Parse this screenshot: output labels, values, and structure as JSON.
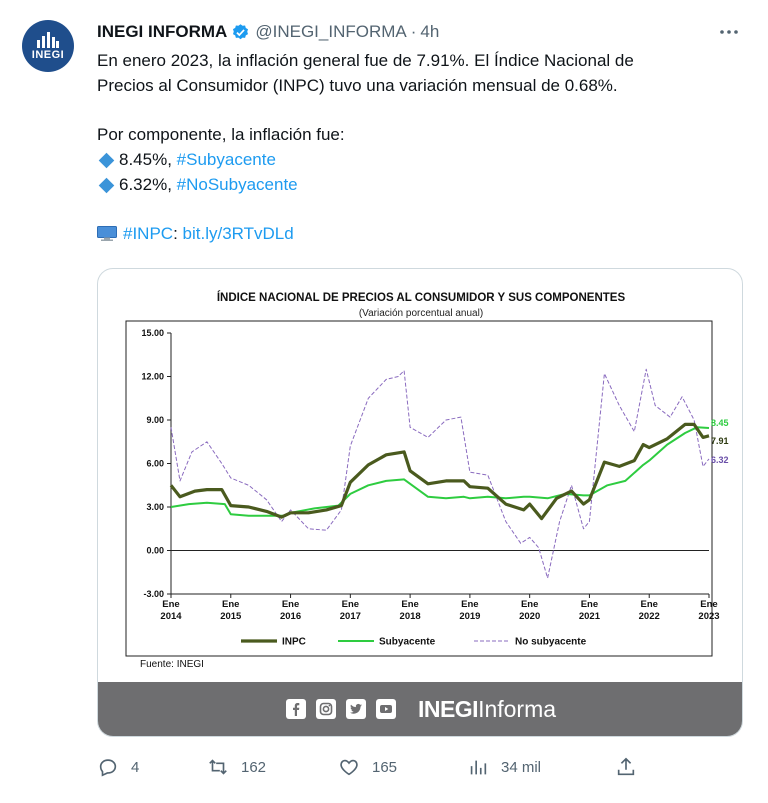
{
  "tweet": {
    "display_name": "INEGI INFORMA",
    "handle": "@INEGI_INFORMA",
    "separator": "·",
    "time": "4h",
    "avatar_label": "INEGI",
    "line1": "En enero 2023, la inflación general fue de 7.91%. El Índice Nacional de",
    "line2": "Precios al Consumidor (INPC) tuvo una variación mensual de 0.68%.",
    "line3": "Por componente, la inflación fue:",
    "item1_value": "8.45%, ",
    "item1_tag": "#Subyacente",
    "item2_value": "6.32%, ",
    "item2_tag": "#NoSubyacente",
    "link_tag": "#INPC",
    "link_sep": ": ",
    "link_url": "bit.ly/3RTvDLd"
  },
  "card": {
    "brand_bold": "INEGI",
    "brand_light": "Informa"
  },
  "actions": {
    "replies": "4",
    "retweets": "162",
    "likes": "165",
    "views": "34 mil"
  },
  "colors": {
    "accent": "#1d9bf0",
    "inpc": "#4a5a1e",
    "subyacente": "#2ecc40",
    "no_subyacente": "#8a6bbf",
    "footer": "#6e6e70"
  },
  "chart_data": {
    "type": "line",
    "title": "Índice Nacional de Precios al Consumidor y sus componentes",
    "subtitle": "(Variación porcentual anual)",
    "source": "Fuente: INEGI",
    "ylim": [
      -3,
      15
    ],
    "yticks": [
      "15.00",
      "12.00",
      "9.00",
      "6.00",
      "3.00",
      "0.00",
      "-3.00"
    ],
    "ytick_values": [
      15,
      12,
      9,
      6,
      3,
      0,
      -3
    ],
    "xticks": [
      {
        "top": "Ene",
        "bottom": "2014"
      },
      {
        "top": "Ene",
        "bottom": "2015"
      },
      {
        "top": "Ene",
        "bottom": "2016"
      },
      {
        "top": "Ene",
        "bottom": "2017"
      },
      {
        "top": "Ene",
        "bottom": "2018"
      },
      {
        "top": "Ene",
        "bottom": "2019"
      },
      {
        "top": "Ene",
        "bottom": "2020"
      },
      {
        "top": "Ene",
        "bottom": "2021"
      },
      {
        "top": "Ene",
        "bottom": "2022"
      },
      {
        "top": "Ene",
        "bottom": "2023"
      }
    ],
    "x_start_year": 2014,
    "x_end_year": 2023,
    "legend_position": "bottom",
    "series": [
      {
        "name": "INPC",
        "end_label": "7.91",
        "points": [
          [
            2014.0,
            4.5
          ],
          [
            2014.15,
            3.7
          ],
          [
            2014.4,
            4.1
          ],
          [
            2014.6,
            4.2
          ],
          [
            2014.85,
            4.2
          ],
          [
            2015.0,
            3.1
          ],
          [
            2015.3,
            3.0
          ],
          [
            2015.6,
            2.7
          ],
          [
            2015.85,
            2.3
          ],
          [
            2016.0,
            2.6
          ],
          [
            2016.3,
            2.6
          ],
          [
            2016.6,
            2.8
          ],
          [
            2016.85,
            3.1
          ],
          [
            2017.0,
            4.7
          ],
          [
            2017.3,
            5.9
          ],
          [
            2017.6,
            6.6
          ],
          [
            2017.9,
            6.8
          ],
          [
            2018.0,
            5.5
          ],
          [
            2018.3,
            4.6
          ],
          [
            2018.6,
            4.8
          ],
          [
            2018.9,
            4.8
          ],
          [
            2019.0,
            4.4
          ],
          [
            2019.3,
            4.3
          ],
          [
            2019.6,
            3.2
          ],
          [
            2019.9,
            2.8
          ],
          [
            2020.0,
            3.2
          ],
          [
            2020.2,
            2.2
          ],
          [
            2020.45,
            3.6
          ],
          [
            2020.7,
            4.1
          ],
          [
            2020.9,
            3.2
          ],
          [
            2021.0,
            3.5
          ],
          [
            2021.25,
            6.1
          ],
          [
            2021.5,
            5.8
          ],
          [
            2021.75,
            6.2
          ],
          [
            2021.9,
            7.3
          ],
          [
            2022.0,
            7.1
          ],
          [
            2022.3,
            7.7
          ],
          [
            2022.6,
            8.7
          ],
          [
            2022.75,
            8.7
          ],
          [
            2022.9,
            7.8
          ],
          [
            2023.0,
            7.91
          ]
        ]
      },
      {
        "name": "Subyacente",
        "end_label": "8.45",
        "points": [
          [
            2014.0,
            3.0
          ],
          [
            2014.3,
            3.2
          ],
          [
            2014.6,
            3.3
          ],
          [
            2014.9,
            3.2
          ],
          [
            2015.0,
            2.5
          ],
          [
            2015.3,
            2.4
          ],
          [
            2015.6,
            2.4
          ],
          [
            2015.9,
            2.4
          ],
          [
            2016.0,
            2.6
          ],
          [
            2016.4,
            2.9
          ],
          [
            2016.8,
            3.1
          ],
          [
            2017.0,
            3.9
          ],
          [
            2017.3,
            4.5
          ],
          [
            2017.6,
            4.8
          ],
          [
            2017.9,
            4.9
          ],
          [
            2018.0,
            4.6
          ],
          [
            2018.3,
            3.7
          ],
          [
            2018.6,
            3.6
          ],
          [
            2018.9,
            3.7
          ],
          [
            2019.0,
            3.6
          ],
          [
            2019.3,
            3.7
          ],
          [
            2019.6,
            3.6
          ],
          [
            2019.9,
            3.7
          ],
          [
            2020.0,
            3.7
          ],
          [
            2020.3,
            3.6
          ],
          [
            2020.6,
            3.9
          ],
          [
            2020.9,
            3.8
          ],
          [
            2021.0,
            3.8
          ],
          [
            2021.3,
            4.5
          ],
          [
            2021.6,
            4.8
          ],
          [
            2021.9,
            5.9
          ],
          [
            2022.0,
            6.2
          ],
          [
            2022.3,
            7.3
          ],
          [
            2022.6,
            8.1
          ],
          [
            2022.8,
            8.5
          ],
          [
            2023.0,
            8.45
          ]
        ]
      },
      {
        "name": "No subyacente",
        "end_label": "6.32",
        "points": [
          [
            2014.0,
            8.5
          ],
          [
            2014.15,
            4.8
          ],
          [
            2014.35,
            6.8
          ],
          [
            2014.6,
            7.5
          ],
          [
            2014.85,
            6.0
          ],
          [
            2015.0,
            5.0
          ],
          [
            2015.3,
            4.5
          ],
          [
            2015.6,
            3.5
          ],
          [
            2015.85,
            2.0
          ],
          [
            2016.0,
            2.8
          ],
          [
            2016.3,
            1.5
          ],
          [
            2016.6,
            1.4
          ],
          [
            2016.85,
            2.8
          ],
          [
            2017.0,
            7.2
          ],
          [
            2017.3,
            10.5
          ],
          [
            2017.6,
            11.8
          ],
          [
            2017.8,
            12.0
          ],
          [
            2017.9,
            12.4
          ],
          [
            2018.0,
            8.5
          ],
          [
            2018.3,
            7.8
          ],
          [
            2018.6,
            9.0
          ],
          [
            2018.85,
            9.2
          ],
          [
            2019.0,
            5.4
          ],
          [
            2019.3,
            5.2
          ],
          [
            2019.6,
            2.0
          ],
          [
            2019.85,
            0.5
          ],
          [
            2020.0,
            0.9
          ],
          [
            2020.15,
            0.2
          ],
          [
            2020.3,
            -1.9
          ],
          [
            2020.5,
            2.0
          ],
          [
            2020.7,
            4.5
          ],
          [
            2020.9,
            1.5
          ],
          [
            2021.0,
            2.0
          ],
          [
            2021.25,
            12.2
          ],
          [
            2021.5,
            10.0
          ],
          [
            2021.75,
            8.2
          ],
          [
            2021.95,
            12.5
          ],
          [
            2022.1,
            10.0
          ],
          [
            2022.35,
            9.2
          ],
          [
            2022.55,
            10.6
          ],
          [
            2022.75,
            9.0
          ],
          [
            2022.9,
            5.8
          ],
          [
            2023.0,
            6.32
          ]
        ]
      }
    ]
  }
}
